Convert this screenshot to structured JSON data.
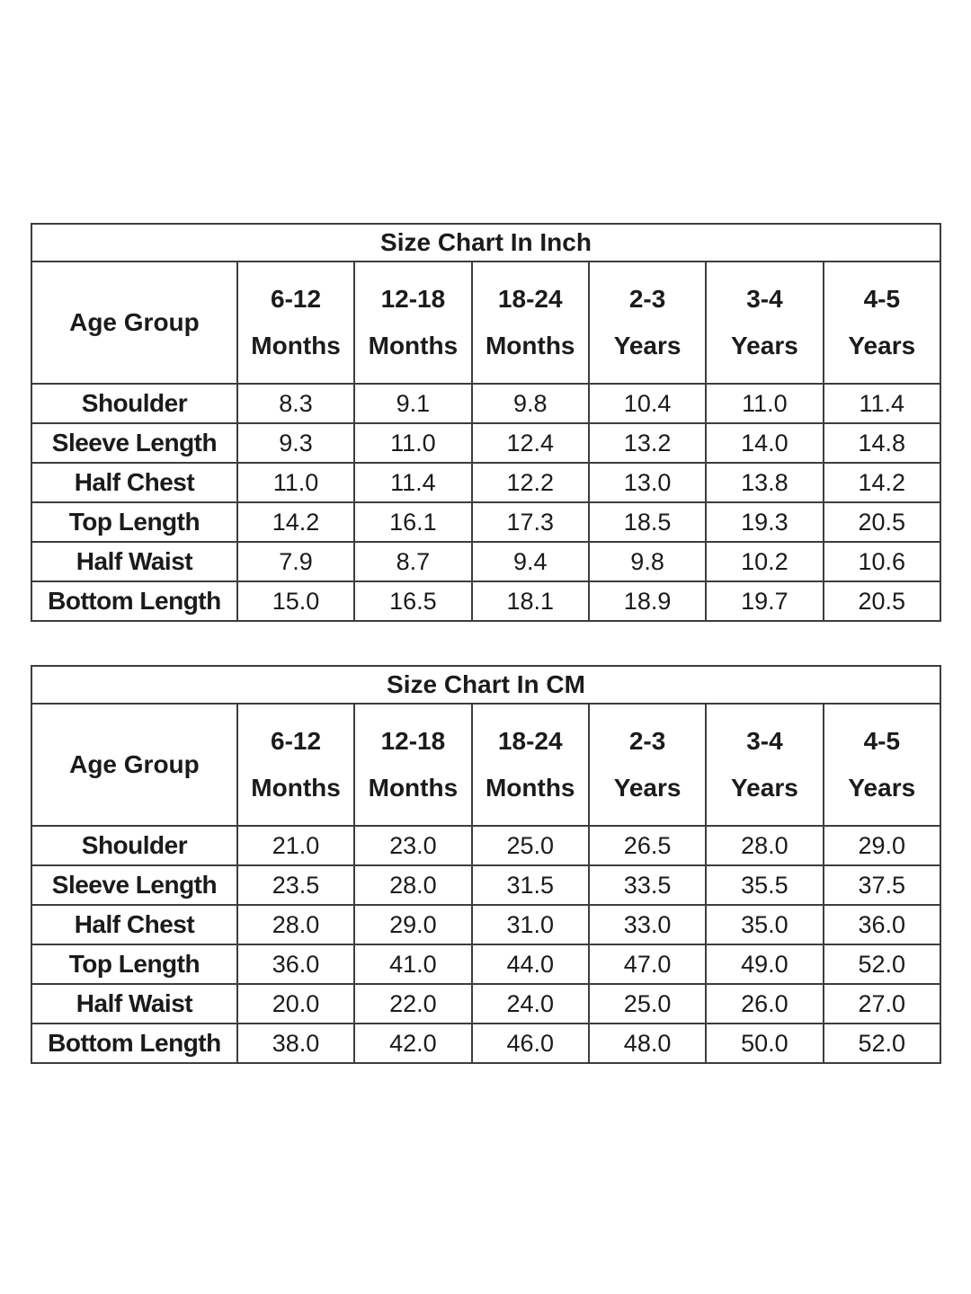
{
  "page": {
    "background_color": "#ffffff",
    "text_color": "#1b1b1b",
    "border_color": "#3d3d3d"
  },
  "tables": [
    {
      "title": "Size Chart In Inch",
      "age_group_label": "Age Group",
      "columns": [
        {
          "line1": "6-12",
          "line2": "Months"
        },
        {
          "line1": "12-18",
          "line2": "Months"
        },
        {
          "line1": "18-24",
          "line2": "Months"
        },
        {
          "line1": "2-3",
          "line2": "Years"
        },
        {
          "line1": "3-4",
          "line2": "Years"
        },
        {
          "line1": "4-5",
          "line2": "Years"
        }
      ],
      "rows": [
        {
          "label": "Shoulder",
          "values": [
            "8.3",
            "9.1",
            "9.8",
            "10.4",
            "11.0",
            "11.4"
          ]
        },
        {
          "label": "Sleeve Length",
          "values": [
            "9.3",
            "11.0",
            "12.4",
            "13.2",
            "14.0",
            "14.8"
          ]
        },
        {
          "label": "Half Chest",
          "values": [
            "11.0",
            "11.4",
            "12.2",
            "13.0",
            "13.8",
            "14.2"
          ]
        },
        {
          "label": "Top Length",
          "values": [
            "14.2",
            "16.1",
            "17.3",
            "18.5",
            "19.3",
            "20.5"
          ]
        },
        {
          "label": "Half Waist",
          "values": [
            "7.9",
            "8.7",
            "9.4",
            "9.8",
            "10.2",
            "10.6"
          ]
        },
        {
          "label": "Bottom Length",
          "values": [
            "15.0",
            "16.5",
            "18.1",
            "18.9",
            "19.7",
            "20.5"
          ]
        }
      ]
    },
    {
      "title": "Size Chart In CM",
      "age_group_label": "Age Group",
      "columns": [
        {
          "line1": "6-12",
          "line2": "Months"
        },
        {
          "line1": "12-18",
          "line2": "Months"
        },
        {
          "line1": "18-24",
          "line2": "Months"
        },
        {
          "line1": "2-3",
          "line2": "Years"
        },
        {
          "line1": "3-4",
          "line2": "Years"
        },
        {
          "line1": "4-5",
          "line2": "Years"
        }
      ],
      "rows": [
        {
          "label": "Shoulder",
          "values": [
            "21.0",
            "23.0",
            "25.0",
            "26.5",
            "28.0",
            "29.0"
          ]
        },
        {
          "label": "Sleeve Length",
          "values": [
            "23.5",
            "28.0",
            "31.5",
            "33.5",
            "35.5",
            "37.5"
          ]
        },
        {
          "label": "Half Chest",
          "values": [
            "28.0",
            "29.0",
            "31.0",
            "33.0",
            "35.0",
            "36.0"
          ]
        },
        {
          "label": "Top Length",
          "values": [
            "36.0",
            "41.0",
            "44.0",
            "47.0",
            "49.0",
            "52.0"
          ]
        },
        {
          "label": "Half Waist",
          "values": [
            "20.0",
            "22.0",
            "24.0",
            "25.0",
            "26.0",
            "27.0"
          ]
        },
        {
          "label": "Bottom Length",
          "values": [
            "38.0",
            "42.0",
            "46.0",
            "48.0",
            "50.0",
            "52.0"
          ]
        }
      ]
    }
  ]
}
